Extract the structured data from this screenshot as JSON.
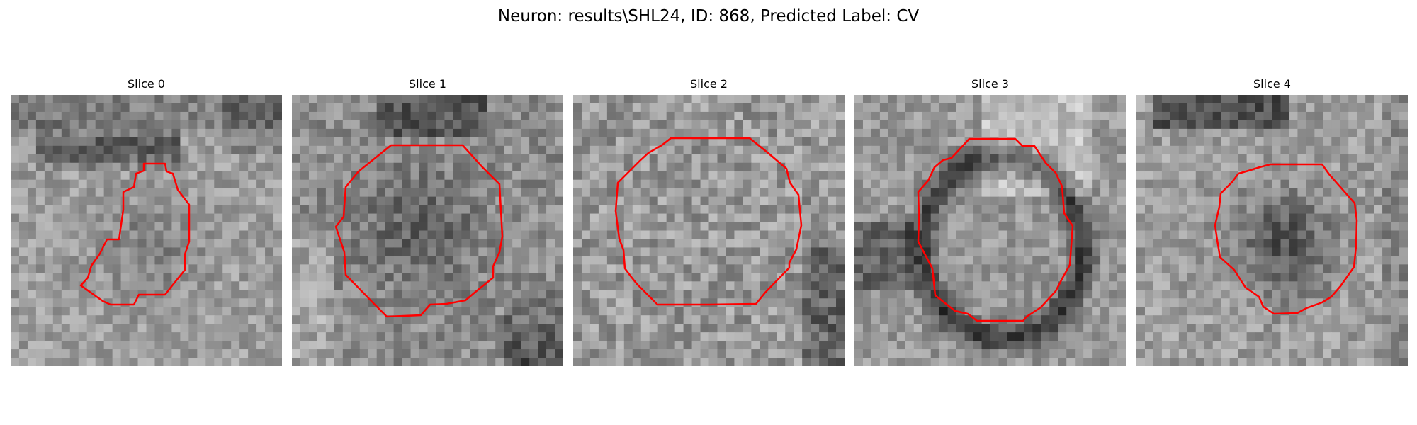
{
  "figure": {
    "title": "Neuron: results\\SHL24, ID: 868, Predicted Label: CV"
  },
  "panels": [
    {
      "title": "Slice 0"
    },
    {
      "title": "Slice 1"
    },
    {
      "title": "Slice 2"
    },
    {
      "title": "Slice 3"
    },
    {
      "title": "Slice 4"
    }
  ],
  "colors": {
    "contour": "#ff0000",
    "background": "#ffffff"
  }
}
